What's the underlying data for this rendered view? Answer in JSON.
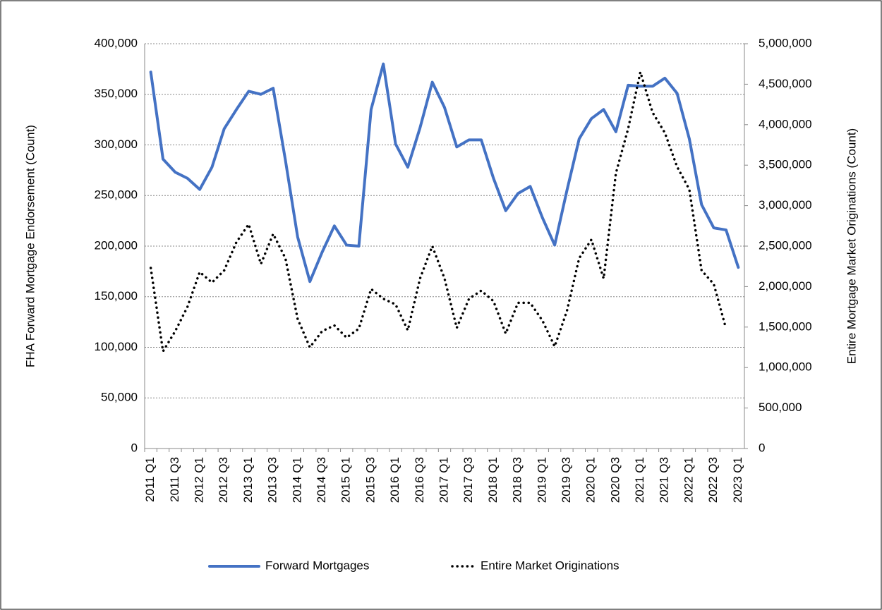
{
  "chart_data": {
    "type": "line",
    "y_label": "FHA Forward Mortgage Endorsement (Count)",
    "y2_label": "Entire Mortgage Market Originations (Count)",
    "categories": [
      "2011 Q1",
      null,
      "2011 Q3",
      null,
      "2012 Q1",
      null,
      "2012 Q3",
      null,
      "2013 Q1",
      null,
      "2013 Q3",
      null,
      "2014 Q1",
      null,
      "2014 Q3",
      null,
      "2015 Q1",
      null,
      "2015 Q3",
      null,
      "2016 Q1",
      null,
      "2016 Q3",
      null,
      "2017 Q1",
      null,
      "2017 Q3",
      null,
      "2018 Q1",
      null,
      "2018 Q3",
      null,
      "2019 Q1",
      null,
      "2019 Q3",
      null,
      "2020 Q1",
      null,
      "2020 Q3",
      null,
      "2021 Q1",
      null,
      "2021 Q3",
      null,
      "2022 Q1",
      null,
      "2022 Q3",
      null,
      "2023 Q1"
    ],
    "series": [
      {
        "name": "Forward Mortgages",
        "color": "#4472c4",
        "dash": "solid",
        "values": [
          372000,
          286000,
          273000,
          267000,
          256000,
          278000,
          316000,
          335000,
          353000,
          350000,
          356000,
          285000,
          209000,
          165000,
          194000,
          220000,
          201000,
          200000,
          335000,
          380000,
          301000,
          278000,
          317000,
          362000,
          337000,
          298000,
          305000,
          305000,
          267000,
          235000,
          252000,
          259000,
          228000,
          201000,
          255000,
          306000,
          326000,
          335000,
          313000,
          359000,
          358000,
          358000,
          366000,
          351000,
          306000,
          241000,
          218000,
          216000,
          179000
        ]
      },
      {
        "name": "Entire Market Originations",
        "color": "#000000",
        "dash": "dotted",
        "axis": "y2",
        "values": [
          2230000,
          1200000,
          1450000,
          1750000,
          2180000,
          2050000,
          2200000,
          2550000,
          2770000,
          2280000,
          2650000,
          2350000,
          1600000,
          1250000,
          1450000,
          1520000,
          1370000,
          1480000,
          1970000,
          1850000,
          1780000,
          1460000,
          2100000,
          2500000,
          2100000,
          1490000,
          1850000,
          1950000,
          1820000,
          1420000,
          1800000,
          1800000,
          1580000,
          1260000,
          1700000,
          2350000,
          2580000,
          2100000,
          3400000,
          3950000,
          4650000,
          4150000,
          3900000,
          3480000,
          3200000,
          2200000,
          2030000,
          1480000,
          null
        ]
      }
    ],
    "ylim": [
      0,
      400000
    ],
    "yticks": [
      0,
      {
        "value": 50000,
        "label": "50,000"
      },
      {
        "value": 100000,
        "label": "100,000"
      },
      {
        "value": 150000,
        "label": "150,000"
      },
      {
        "value": 200000,
        "label": "200,000"
      },
      {
        "value": 250000,
        "label": "250,000"
      },
      {
        "value": 300000,
        "label": "300,000"
      },
      {
        "value": 350000,
        "label": "350,000"
      },
      {
        "value": 400000,
        "label": "400,000"
      }
    ],
    "y2lim": [
      0,
      5000000
    ],
    "y2ticks": [
      0,
      {
        "value": 500000,
        "label": "500,000"
      },
      {
        "value": 1000000,
        "label": "1,000,000"
      },
      {
        "value": 1500000,
        "label": "1,500,000"
      },
      {
        "value": 2000000,
        "label": "2,000,000"
      },
      {
        "value": 2500000,
        "label": "2,500,000"
      },
      {
        "value": 3000000,
        "label": "3,000,000"
      },
      {
        "value": 3500000,
        "label": "3,500,000"
      },
      {
        "value": 4000000,
        "label": "4,000,000"
      },
      {
        "value": 4500000,
        "label": "4,500,000"
      },
      {
        "value": 5000000,
        "label": "5,000,000"
      }
    ],
    "grid": true,
    "legend": "bottom"
  }
}
